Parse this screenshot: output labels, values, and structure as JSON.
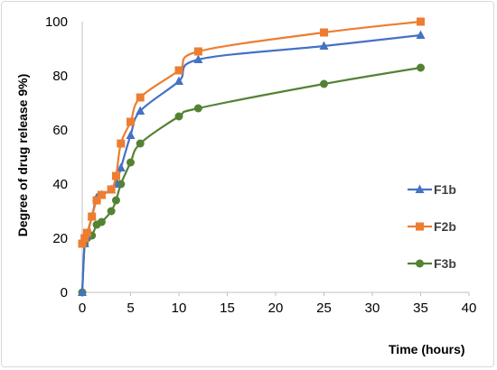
{
  "chart_data": {
    "type": "line",
    "title": "",
    "xlabel": "Time (hours)",
    "ylabel": "Degree of drug release 9%)",
    "xlim": [
      0,
      40
    ],
    "ylim": [
      0,
      100
    ],
    "xticks": [
      0,
      5,
      10,
      15,
      20,
      25,
      30,
      35,
      40
    ],
    "yticks": [
      0,
      20,
      40,
      60,
      80,
      100
    ],
    "grid": false,
    "legend_position": "right",
    "series": [
      {
        "name": "F1b",
        "color": "#4472C4",
        "marker": "triangle",
        "x": [
          0,
          0.25,
          0.5,
          1,
          1.5,
          2,
          3,
          3.5,
          4,
          5,
          6,
          10,
          12,
          25,
          35
        ],
        "y": [
          0,
          18,
          21,
          28,
          35,
          36,
          38,
          40,
          46,
          58,
          67,
          78,
          86,
          91,
          95
        ]
      },
      {
        "name": "F2b",
        "color": "#ED7D31",
        "marker": "square",
        "x": [
          0,
          0.25,
          0.5,
          1,
          1.5,
          2,
          3,
          3.5,
          4,
          5,
          6,
          10,
          12,
          25,
          35
        ],
        "y": [
          18,
          20,
          22,
          28,
          34,
          36,
          38,
          43,
          55,
          63,
          72,
          82,
          89,
          96,
          100
        ]
      },
      {
        "name": "F3b",
        "color": "#548235",
        "marker": "circle",
        "x": [
          0,
          0.25,
          0.5,
          1,
          1.5,
          2,
          3,
          3.5,
          4,
          5,
          6,
          10,
          12,
          25,
          35
        ],
        "y": [
          0,
          18,
          20,
          21,
          25,
          26,
          30,
          34,
          40,
          48,
          55,
          65,
          68,
          77,
          83
        ]
      }
    ],
    "legend_labels": [
      "F1b",
      "F2b",
      "F3b"
    ]
  }
}
